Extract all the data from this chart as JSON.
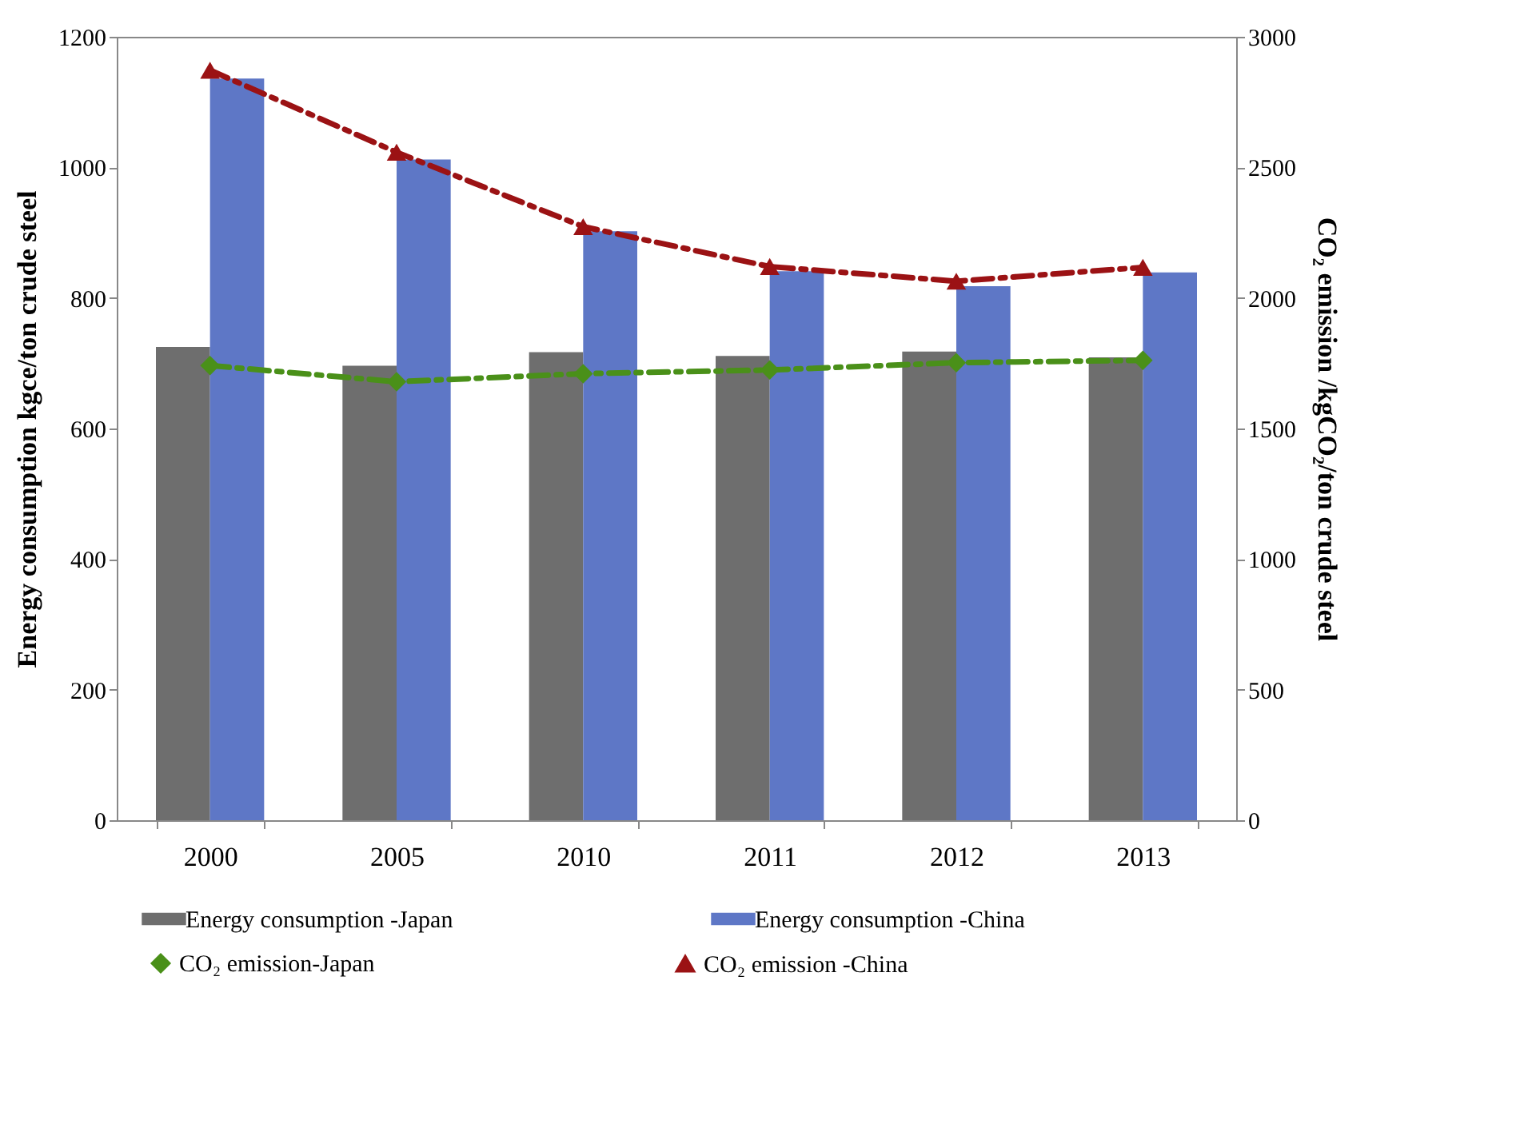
{
  "chart_data": {
    "type": "bar",
    "categories": [
      "2000",
      "2005",
      "2010",
      "2011",
      "2012",
      "2013"
    ],
    "ylabel": "Energy consumption kgce/ton crude steel",
    "y2label": "CO₂ emission /kgCO₂/ton crude steel",
    "ylim": [
      0,
      1200
    ],
    "yticks": [
      0,
      200,
      400,
      600,
      800,
      1000,
      1200
    ],
    "y2lim": [
      0,
      3000
    ],
    "y2ticks": [
      0,
      500,
      1000,
      1500,
      2000,
      2500,
      3000
    ],
    "legend": "bottom",
    "line_style": "dashed",
    "series": [
      {
        "name": "Energy consumption -Japan",
        "color": "#6e6e6e",
        "values": [
          725,
          696,
          717,
          711,
          718,
          709
        ]
      },
      {
        "name": "Energy consumption -China",
        "color": "#5e77c6",
        "values": [
          1136,
          1012,
          902,
          841,
          818,
          839
        ]
      },
      {
        "name": "CO₂ emission-Japan",
        "type": "line",
        "axis": "y2",
        "marker": "diamond",
        "color": "#4a9019",
        "values": [
          1741,
          1679,
          1710,
          1724,
          1752,
          1761
        ]
      },
      {
        "name": "CO₂ emission -China",
        "type": "line",
        "axis": "y2",
        "marker": "triangle",
        "color": "#9b1214",
        "values": [
          2872,
          2558,
          2273,
          2120,
          2064,
          2117
        ]
      }
    ]
  }
}
